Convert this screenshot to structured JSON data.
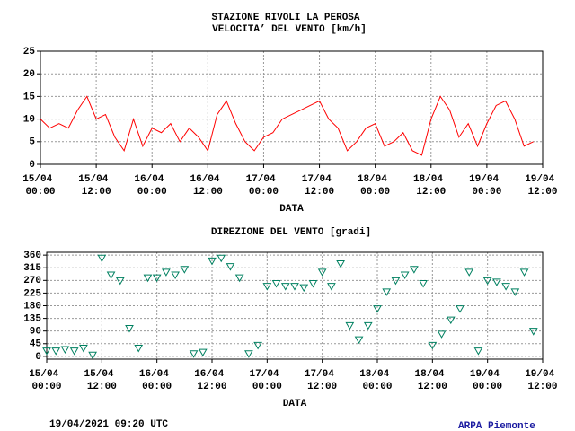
{
  "chart_data": [
    {
      "type": "line",
      "title": "STAZIONE RIVOLI LA PEROSA",
      "subtitle": "VELOCITA’ DEL VENTO [km/h]",
      "xlabel": "DATA",
      "x": [
        "15/04 00:00",
        "15/04 02:00",
        "15/04 04:00",
        "15/04 06:00",
        "15/04 08:00",
        "15/04 10:00",
        "15/04 12:00",
        "15/04 14:00",
        "15/04 16:00",
        "15/04 18:00",
        "15/04 20:00",
        "15/04 22:00",
        "16/04 00:00",
        "16/04 02:00",
        "16/04 04:00",
        "16/04 06:00",
        "16/04 08:00",
        "16/04 10:00",
        "16/04 12:00",
        "16/04 14:00",
        "16/04 16:00",
        "16/04 18:00",
        "16/04 20:00",
        "16/04 22:00",
        "17/04 00:00",
        "17/04 02:00",
        "17/04 04:00",
        "17/04 06:00",
        "17/04 08:00",
        "17/04 10:00",
        "17/04 12:00",
        "17/04 14:00",
        "17/04 16:00",
        "17/04 18:00",
        "17/04 20:00",
        "17/04 22:00",
        "18/04 00:00",
        "18/04 02:00",
        "18/04 04:00",
        "18/04 06:00",
        "18/04 08:00",
        "18/04 10:00",
        "18/04 12:00",
        "18/04 14:00",
        "18/04 16:00",
        "18/04 18:00",
        "18/04 20:00",
        "18/04 22:00",
        "19/04 00:00",
        "19/04 02:00",
        "19/04 04:00",
        "19/04 06:00",
        "19/04 08:00",
        "19/04 10:00"
      ],
      "series": [
        {
          "name": "VELOCITA’ DEL VENTO",
          "color": "#ff0000",
          "values": [
            10,
            8,
            9,
            8,
            12,
            15,
            10,
            11,
            6,
            3,
            10,
            4,
            8,
            7,
            9,
            5,
            8,
            6,
            3,
            11,
            14,
            9,
            5,
            3,
            6,
            7,
            10,
            11,
            12,
            13,
            14,
            10,
            8,
            3,
            5,
            8,
            9,
            4,
            5,
            7,
            3,
            2,
            10,
            15,
            12,
            6,
            9,
            4,
            9,
            13,
            14,
            10,
            4,
            5
          ]
        }
      ],
      "xlim": [
        "15/04 00:00",
        "19/04 12:00"
      ],
      "xticks": [
        "15/04 00:00",
        "15/04 12:00",
        "16/04 00:00",
        "16/04 12:00",
        "17/04 00:00",
        "17/04 12:00",
        "18/04 00:00",
        "18/04 12:00",
        "19/04 00:00",
        "19/04 12:00"
      ],
      "ylim": [
        0,
        25
      ],
      "yticks": [
        0,
        5,
        10,
        15,
        20,
        25
      ],
      "grid": true
    },
    {
      "type": "scatter",
      "title": "DIREZIONE DEL VENTO [gradi]",
      "xlabel": "DATA",
      "x": [
        "15/04 00:00",
        "15/04 02:00",
        "15/04 04:00",
        "15/04 06:00",
        "15/04 08:00",
        "15/04 10:00",
        "15/04 12:00",
        "15/04 14:00",
        "15/04 16:00",
        "15/04 18:00",
        "15/04 20:00",
        "15/04 22:00",
        "16/04 00:00",
        "16/04 02:00",
        "16/04 04:00",
        "16/04 06:00",
        "16/04 08:00",
        "16/04 10:00",
        "16/04 12:00",
        "16/04 14:00",
        "16/04 16:00",
        "16/04 18:00",
        "16/04 20:00",
        "16/04 22:00",
        "17/04 00:00",
        "17/04 02:00",
        "17/04 04:00",
        "17/04 06:00",
        "17/04 08:00",
        "17/04 10:00",
        "17/04 12:00",
        "17/04 14:00",
        "17/04 16:00",
        "17/04 18:00",
        "17/04 20:00",
        "17/04 22:00",
        "18/04 00:00",
        "18/04 02:00",
        "18/04 04:00",
        "18/04 06:00",
        "18/04 08:00",
        "18/04 10:00",
        "18/04 12:00",
        "18/04 14:00",
        "18/04 16:00",
        "18/04 18:00",
        "18/04 20:00",
        "18/04 22:00",
        "19/04 00:00",
        "19/04 02:00",
        "19/04 04:00",
        "19/04 06:00",
        "19/04 08:00",
        "19/04 10:00"
      ],
      "series": [
        {
          "name": "DIREZIONE DEL VENTO",
          "color": "#008060",
          "values": [
            20,
            20,
            25,
            20,
            30,
            5,
            350,
            290,
            270,
            100,
            30,
            280,
            280,
            300,
            290,
            310,
            10,
            15,
            340,
            350,
            320,
            280,
            10,
            40,
            250,
            260,
            250,
            250,
            245,
            260,
            300,
            250,
            330,
            110,
            60,
            110,
            170,
            230,
            270,
            290,
            310,
            260,
            40,
            80,
            130,
            170,
            300,
            20,
            270,
            265,
            250,
            230,
            300,
            90
          ]
        }
      ],
      "xlim": [
        "15/04 00:00",
        "19/04 12:00"
      ],
      "xticks": [
        "15/04 00:00",
        "15/04 12:00",
        "16/04 00:00",
        "16/04 12:00",
        "17/04 00:00",
        "17/04 12:00",
        "18/04 00:00",
        "18/04 12:00",
        "19/04 00:00",
        "19/04 12:00"
      ],
      "ylim": [
        -10,
        370
      ],
      "yticks": [
        0,
        45,
        90,
        135,
        180,
        225,
        270,
        315,
        360
      ],
      "grid": true
    }
  ],
  "footer": {
    "timestamp": "19/04/2021 09:20 UTC",
    "source": "ARPA Piemonte"
  }
}
